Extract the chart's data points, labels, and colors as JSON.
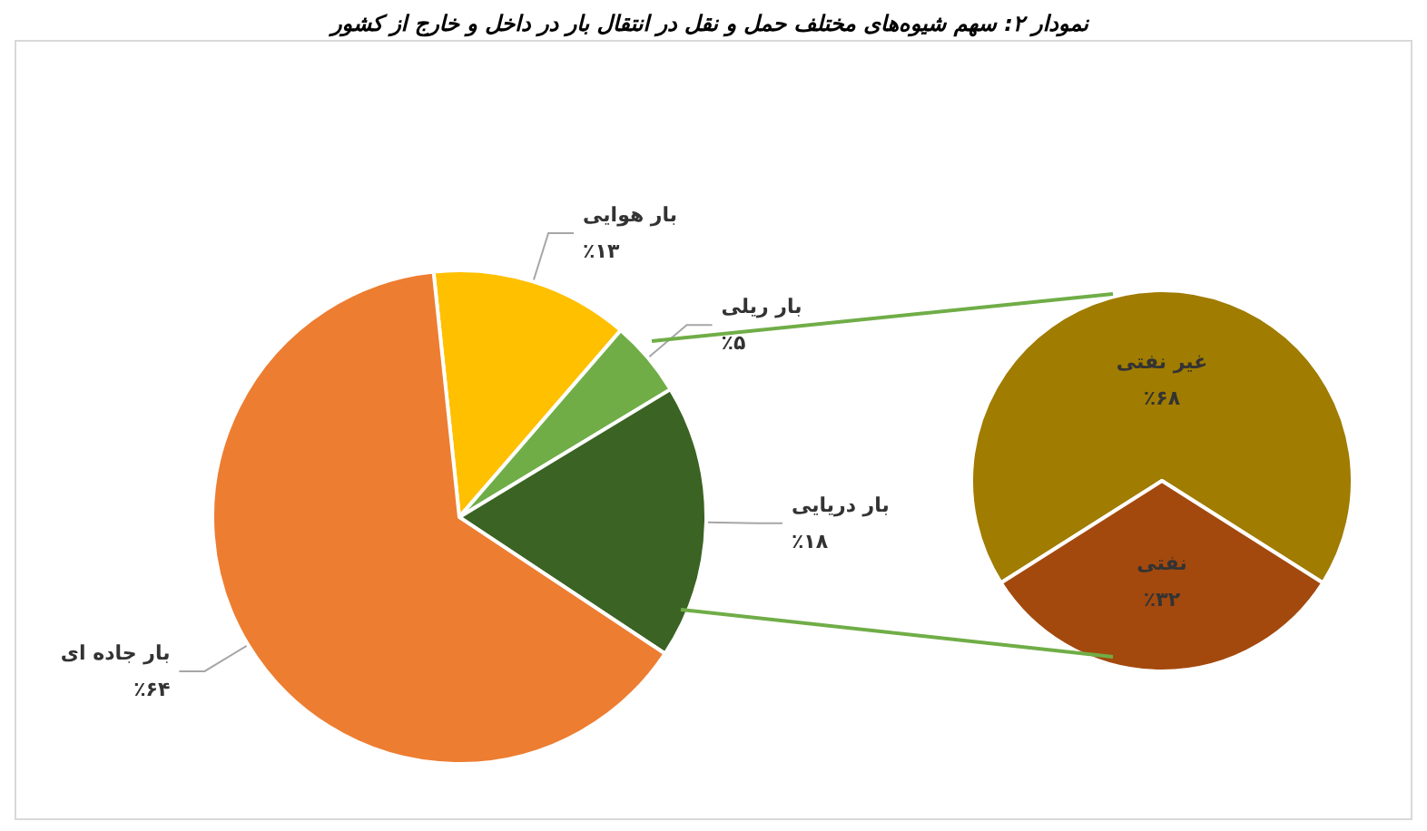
{
  "chart_data": [
    {
      "type": "pie",
      "title": "نمودار ۲: سهم شیوه‌های مختلف حمل و نقل در انتقال بار در داخل و خارج از کشور",
      "categories": [
        "بار هوایی",
        "بار ریلی",
        "بار دریایی",
        "بار جاده ای"
      ],
      "values": [
        13,
        5,
        18,
        64
      ],
      "colors": [
        "#ffc000",
        "#70ad47",
        "#3b6323",
        "#ed7d31"
      ],
      "value_labels": [
        "٪۱۳",
        "٪۵",
        "٪۱۸",
        "٪۶۴"
      ],
      "legend": false
    },
    {
      "type": "pie",
      "categories": [
        "غیر نفتی",
        "نفتی"
      ],
      "values": [
        68,
        32
      ],
      "colors": [
        "#a07c00",
        "#a3490d"
      ],
      "value_labels": [
        "٪۶۸",
        "٪۳۲"
      ],
      "legend": false
    }
  ]
}
